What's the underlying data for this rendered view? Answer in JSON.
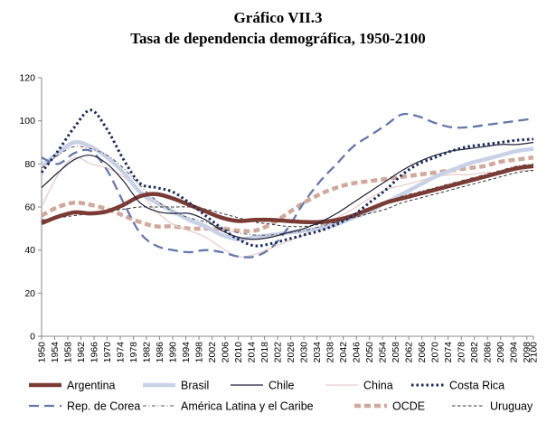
{
  "figure": {
    "label": "Gráfico VII.3",
    "title": "Tasa de dependencia demográfica, 1950-2100"
  },
  "chart_data": {
    "type": "line",
    "title": "Tasa de dependencia demográfica, 1950-2100",
    "xlabel": "",
    "ylabel": "",
    "xlim": [
      1950,
      2100
    ],
    "ylim": [
      0,
      120
    ],
    "yticks": [
      0,
      20,
      40,
      60,
      80,
      100,
      120
    ],
    "xticks": [
      1950,
      1954,
      1958,
      1962,
      1966,
      1970,
      1974,
      1978,
      1982,
      1986,
      1990,
      1994,
      1998,
      2002,
      2006,
      2010,
      2014,
      2018,
      2022,
      2026,
      2030,
      2034,
      2038,
      2042,
      2046,
      2050,
      2054,
      2058,
      2062,
      2066,
      2070,
      2074,
      2078,
      2082,
      2086,
      2090,
      2094,
      2098,
      2100
    ],
    "xtick_labels": [
      "1950",
      "1954",
      "1958",
      "1962",
      "1966",
      "1970",
      "1974",
      "1978",
      "1982",
      "1986",
      "1990",
      "1994",
      "1998",
      "2002",
      "2006",
      "2010",
      "2014",
      "2018",
      "2022",
      "2026",
      "2030",
      "2034",
      "2038",
      "2042",
      "2046",
      "2050",
      "2054",
      "2058",
      "2062",
      "2066",
      "2070",
      "2074",
      "2078",
      "2082",
      "2086",
      "2090",
      "2094",
      "2098",
      "2100"
    ],
    "grid": false,
    "legend_position": "bottom",
    "x": [
      1950,
      1955,
      1960,
      1965,
      1970,
      1975,
      1980,
      1985,
      1990,
      1995,
      2000,
      2005,
      2010,
      2015,
      2020,
      2025,
      2030,
      2035,
      2040,
      2045,
      2050,
      2055,
      2060,
      2065,
      2070,
      2075,
      2080,
      2085,
      2090,
      2095,
      2100
    ],
    "series": [
      {
        "name": "Argentina",
        "color": "#7b3b35",
        "style": "solid-thick",
        "values": [
          52.5,
          55.5,
          57.5,
          57,
          58,
          61,
          65,
          66,
          64,
          61,
          58,
          55,
          53.5,
          54,
          54,
          53.5,
          53,
          53,
          54,
          56,
          59,
          62,
          64,
          66,
          68,
          70,
          72,
          74,
          76,
          78,
          79
        ]
      },
      {
        "name": "Brasil",
        "color": "#c9d1e6",
        "style": "solid-thick",
        "values": [
          79,
          85,
          90,
          88,
          83,
          76,
          67,
          62,
          58,
          54,
          51,
          47,
          45,
          46,
          47,
          48,
          49,
          50,
          52,
          55,
          58,
          62,
          66,
          70,
          74,
          77,
          80,
          82,
          84,
          86,
          87
        ]
      },
      {
        "name": "Chile",
        "color": "#1f1f3a",
        "style": "solid-thin",
        "values": [
          69,
          76,
          82,
          84,
          80,
          72,
          62,
          58,
          57,
          57,
          54,
          49,
          46,
          45,
          46,
          48,
          50,
          53,
          57,
          62,
          67,
          72,
          77,
          81,
          84,
          86,
          87,
          88,
          89,
          89,
          90
        ]
      },
      {
        "name": "China",
        "color": "#e8c9c6",
        "style": "solid-thin",
        "values": [
          60,
          75,
          83,
          80,
          78,
          74,
          67,
          58,
          52,
          49,
          46,
          41,
          37,
          38,
          41,
          44,
          47,
          51,
          55,
          59,
          64,
          68,
          70,
          72,
          74,
          75,
          75,
          76,
          76,
          77,
          77
        ]
      },
      {
        "name": "Costa Rica",
        "color": "#1b2a5c",
        "style": "dotted-thick",
        "values": [
          76,
          86,
          97,
          105,
          96,
          82,
          71,
          69,
          67,
          62,
          56,
          50,
          45,
          42,
          43,
          45,
          47,
          49,
          52,
          56,
          62,
          68,
          75,
          80,
          83,
          86,
          88,
          89,
          90,
          91,
          91.5
        ]
      },
      {
        "name": "Rep. de Corea",
        "color": "#6677aa",
        "style": "dashed-long",
        "values": [
          83,
          80,
          85,
          86,
          77,
          62,
          48,
          42,
          40,
          39,
          40,
          39,
          37,
          37,
          41,
          50,
          62,
          72,
          80,
          88,
          93,
          98,
          103,
          102,
          99,
          97,
          97,
          98,
          99,
          100,
          101
        ]
      },
      {
        "name": "América Latina y el Caribe",
        "color": "#555555",
        "style": "dash-dot",
        "values": [
          78,
          84,
          88,
          87,
          84,
          78,
          70,
          63,
          58,
          55,
          53,
          50,
          48,
          47,
          47,
          48,
          49,
          51,
          53,
          56,
          59,
          62,
          65,
          67,
          69,
          71,
          73,
          75,
          77,
          79,
          80
        ]
      },
      {
        "name": "OCDE",
        "color": "#d0a89c",
        "style": "dashed-thick",
        "values": [
          56,
          60,
          62,
          61,
          59,
          56,
          53,
          51,
          51,
          50,
          50,
          50,
          49,
          49,
          52,
          57,
          62,
          66,
          69,
          71,
          72,
          73,
          74,
          75,
          76,
          77,
          78,
          79,
          81,
          82,
          83
        ]
      },
      {
        "name": "Uruguay",
        "color": "#333333",
        "style": "dashed-short",
        "values": [
          54,
          55,
          56,
          57,
          58,
          59,
          60,
          60,
          60,
          60,
          59,
          57,
          55,
          53,
          52,
          51,
          51,
          52,
          53,
          55,
          57,
          59,
          62,
          64,
          66,
          68,
          70,
          72,
          74,
          76,
          77
        ]
      }
    ]
  },
  "legend_rows": [
    [
      "Argentina",
      "Brasil",
      "Chile",
      "China",
      "Costa Rica"
    ],
    [
      "Rep. de Corea",
      "América Latina y el Caribe",
      "OCDE",
      "Uruguay"
    ]
  ]
}
